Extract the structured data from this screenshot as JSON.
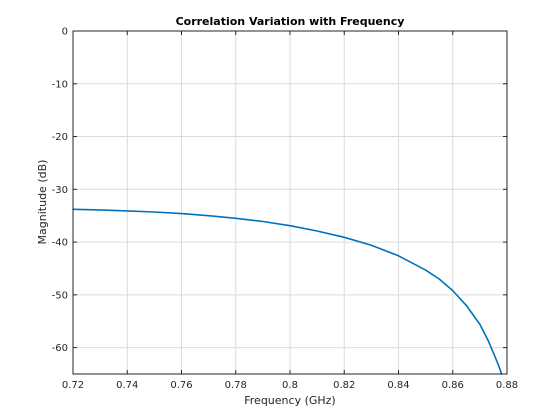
{
  "chart_data": {
    "type": "line",
    "title": "Correlation Variation with Frequency",
    "xlabel": "Frequency (GHz)",
    "ylabel": "Magnitude (dB)",
    "xlim": [
      0.72,
      0.88
    ],
    "ylim": [
      -65,
      0
    ],
    "xticks": [
      0.72,
      0.74,
      0.76,
      0.78,
      0.8,
      0.82,
      0.84,
      0.86,
      0.88
    ],
    "xtick_labels": [
      "0.72",
      "0.74",
      "0.76",
      "0.78",
      "0.8",
      "0.82",
      "0.84",
      "0.86",
      "0.88"
    ],
    "yticks": [
      0,
      -10,
      -20,
      -30,
      -40,
      -50,
      -60
    ],
    "ytick_labels": [
      "0",
      "-10",
      "-20",
      "-30",
      "-40",
      "-50",
      "-60"
    ],
    "grid": true,
    "series": [
      {
        "color": "#0072bd",
        "x": [
          0.72,
          0.73,
          0.74,
          0.75,
          0.76,
          0.77,
          0.78,
          0.79,
          0.8,
          0.81,
          0.82,
          0.83,
          0.84,
          0.85,
          0.855,
          0.86,
          0.865,
          0.87,
          0.873,
          0.875,
          0.877,
          0.878
        ],
        "y": [
          -33.8,
          -33.9,
          -34.1,
          -34.3,
          -34.6,
          -35.0,
          -35.5,
          -36.1,
          -36.9,
          -37.9,
          -39.1,
          -40.6,
          -42.6,
          -45.3,
          -47.0,
          -49.2,
          -52.0,
          -55.6,
          -58.6,
          -61.0,
          -63.5,
          -65.0
        ]
      }
    ]
  }
}
